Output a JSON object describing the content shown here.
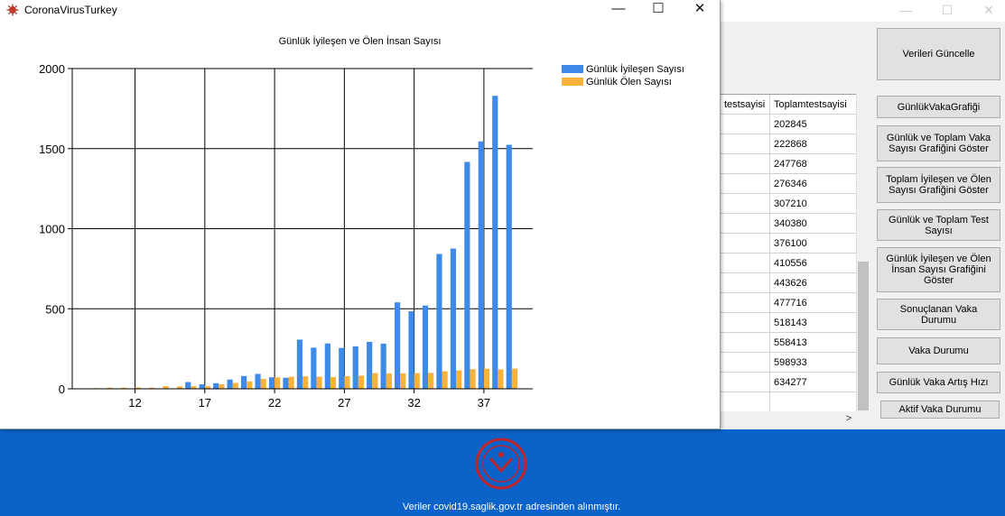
{
  "chart_window": {
    "title": "CoronaVirusTurkey",
    "controls": {
      "minimize": "—",
      "maximize": "☐",
      "close": "✕"
    }
  },
  "buttons": {
    "update": "Verileri Güncelle",
    "daily_case_chart": "GünlükVakaGrafiği",
    "daily_total_case_chart": "Günlük ve Toplam Vaka Sayısı Grafiğini Göster",
    "total_recovered_dead_chart": "Toplam İyileşen ve Ölen Sayısı Grafiğini Göster",
    "daily_total_test": "Günlük ve Toplam Test Sayısı",
    "daily_recovered_dead_chart": "Günlük İyileşen ve Ölen İnsan Sayısı Grafiğini Göster",
    "concluded_cases": "Sonuçlanan Vaka Durumu",
    "case_status": "Vaka Durumu",
    "daily_case_growth": "Günlük Vaka Artış Hızı",
    "active_case_status": "Aktif Vaka Durumu"
  },
  "table": {
    "columns": [
      "testsayisi",
      "Toplamtestsayisi"
    ],
    "rows": [
      "202845",
      "222868",
      "247768",
      "276346",
      "307210",
      "340380",
      "376100",
      "410556",
      "443626",
      "477716",
      "518143",
      "558413",
      "598933",
      "634277",
      ""
    ]
  },
  "footer": "Veriler covid19.saglik.gov.tr adresinden alınmıştır.",
  "colors": {
    "recovered": "#3d8ae8",
    "dead": "#f8b23b",
    "main_background": "#0b63c9"
  },
  "chart_data": {
    "type": "bar",
    "title": "Günlük İyileşen ve Ölen İnsan Sayısı",
    "x_ticks": [
      12,
      17,
      22,
      27,
      32,
      37
    ],
    "y_ticks": [
      0,
      500,
      1000,
      1500,
      2000
    ],
    "ylim": [
      0,
      2000
    ],
    "xlim": [
      7.5,
      40.5
    ],
    "x": [
      8,
      9,
      10,
      11,
      12,
      13,
      14,
      15,
      16,
      17,
      18,
      19,
      20,
      21,
      22,
      23,
      24,
      25,
      26,
      27,
      28,
      29,
      30,
      31,
      32,
      33,
      34,
      35,
      36,
      37,
      38,
      39
    ],
    "series": [
      {
        "name": "Günlük İyileşen Sayısı",
        "values": [
          0,
          0,
          0,
          0,
          0,
          0,
          0,
          0,
          42,
          28,
          35,
          58,
          80,
          93,
          72,
          69,
          307,
          257,
          283,
          255,
          265,
          293,
          282,
          540,
          484,
          520,
          842,
          876,
          1417,
          1545,
          1830,
          1524
        ]
      },
      {
        "name": "Günlük Ölen Sayısı",
        "values": [
          2,
          4,
          7,
          7,
          9,
          7,
          17,
          15,
          16,
          17,
          28,
          37,
          46,
          62,
          71,
          75,
          78,
          76,
          73,
          79,
          82,
          98,
          96,
          97,
          98,
          100,
          110,
          115,
          123,
          125,
          121,
          126
        ]
      }
    ],
    "legend_position": "top-right",
    "grid": true
  }
}
